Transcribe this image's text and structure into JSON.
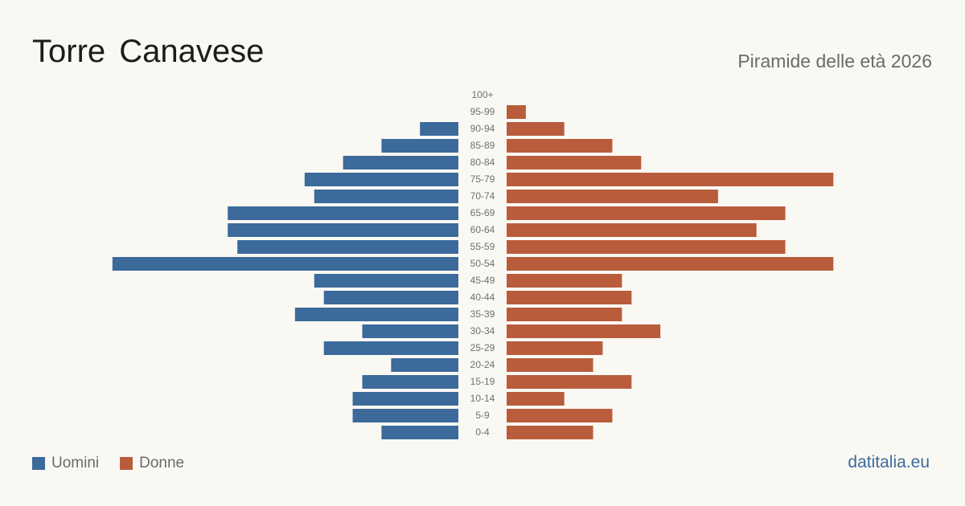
{
  "header": {
    "title": "Torre Canavese",
    "subtitle": "Piramide delle età 2026"
  },
  "legend": {
    "male_label": "Uomini",
    "female_label": "Donne"
  },
  "source": "datitalia.eu",
  "colors": {
    "male": "#3b6a9b",
    "female": "#b95c3c"
  },
  "chart_data": {
    "type": "bar",
    "orientation": "horizontal-pyramid",
    "categories": [
      "100+",
      "95-99",
      "90-94",
      "85-89",
      "80-84",
      "75-79",
      "70-74",
      "65-69",
      "60-64",
      "55-59",
      "50-54",
      "45-49",
      "40-44",
      "35-39",
      "30-34",
      "25-29",
      "20-24",
      "15-19",
      "10-14",
      "5-9",
      "0-4"
    ],
    "series": [
      {
        "name": "Uomini",
        "values": [
          0,
          0,
          4,
          8,
          12,
          16,
          15,
          24,
          24,
          23,
          36,
          15,
          14,
          17,
          10,
          14,
          7,
          10,
          11,
          11,
          8
        ]
      },
      {
        "name": "Donne",
        "values": [
          0,
          2,
          6,
          11,
          14,
          34,
          22,
          29,
          26,
          29,
          34,
          12,
          13,
          12,
          16,
          10,
          9,
          13,
          6,
          11,
          9
        ]
      }
    ],
    "legend_position": "bottom-left",
    "grid": false
  }
}
